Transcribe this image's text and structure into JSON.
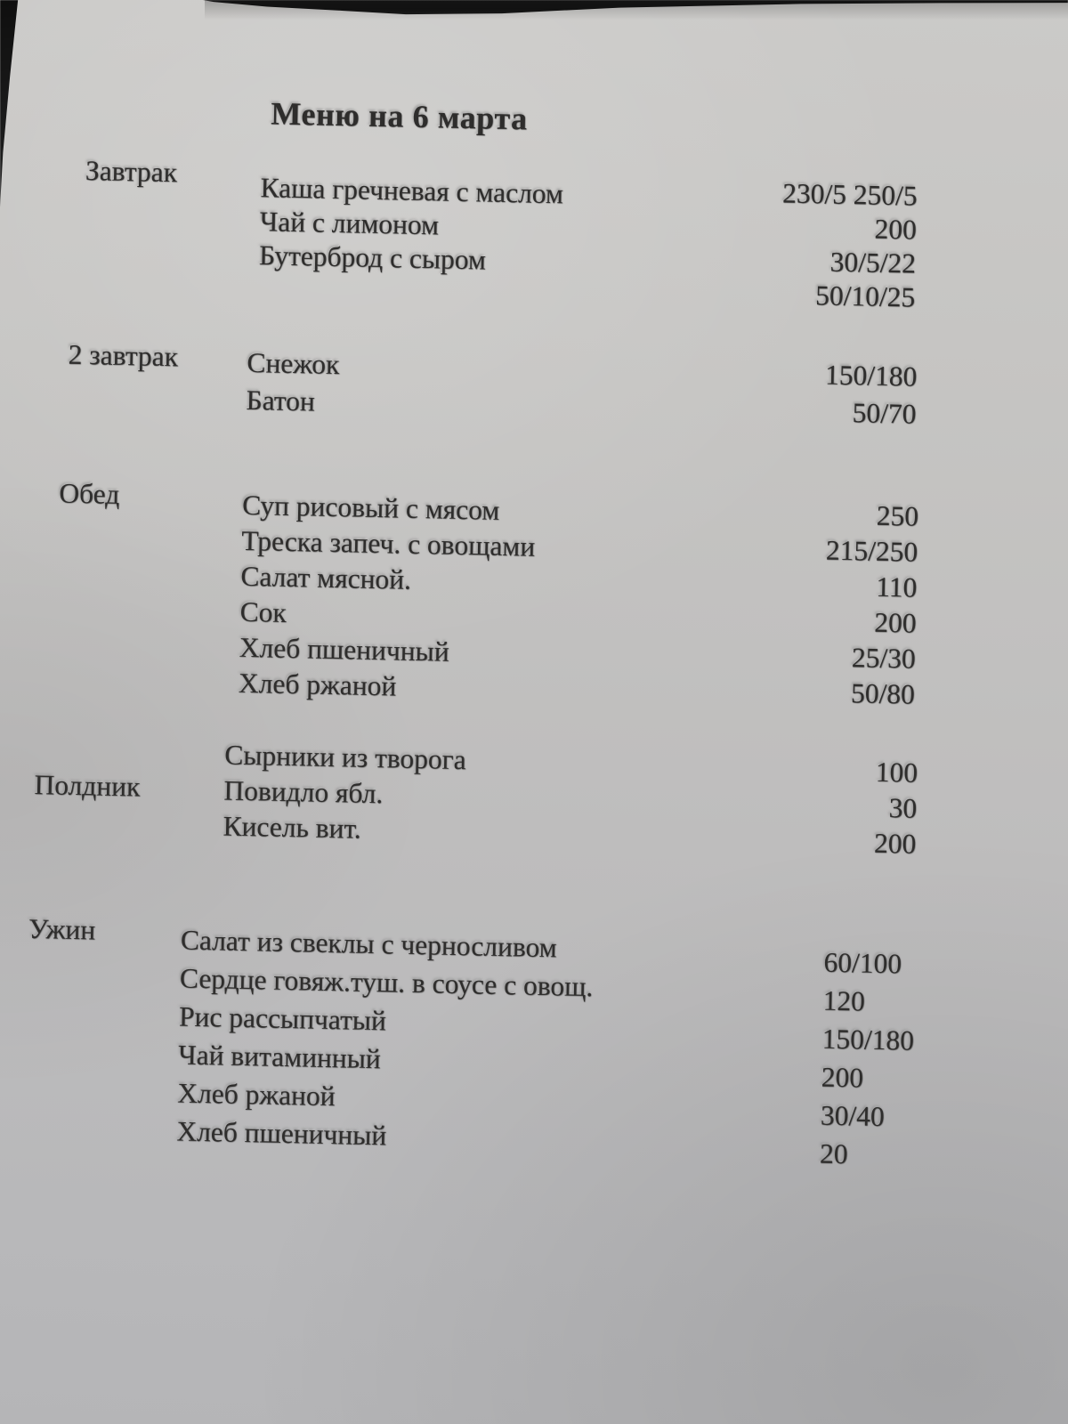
{
  "menu": {
    "title": "Меню на 6 марта",
    "sections": [
      {
        "label": "Завтрак",
        "rows": [
          {
            "item": "Каша гречневая с маслом",
            "amount": "230/5 250/5"
          },
          {
            "item": "Чай с лимоном",
            "amount": "200"
          },
          {
            "item": "Бутерброд с сыром",
            "amount": "30/5/22"
          },
          {
            "item": "",
            "amount": "50/10/25"
          }
        ]
      },
      {
        "label": "2 завтрак",
        "rows": [
          {
            "item": "Снежок",
            "amount": "150/180"
          },
          {
            "item": "Батон",
            "amount": "50/70"
          }
        ]
      },
      {
        "label": "Обед",
        "rows": [
          {
            "item": "Суп рисовый с мясом",
            "amount": "250"
          },
          {
            "item": "Треска запеч. с овощами",
            "amount": "215/250"
          },
          {
            "item": "Салат мясной.",
            "amount": "110"
          },
          {
            "item": "Сок",
            "amount": "200"
          },
          {
            "item": "Хлеб пшеничный",
            "amount": "25/30"
          },
          {
            "item": "Хлеб ржаной",
            "amount": "50/80"
          }
        ]
      },
      {
        "label": "Полдник",
        "rows": [
          {
            "item": "Сырники из творога",
            "amount": "100"
          },
          {
            "item": "Повидло ябл.",
            "amount": "30"
          },
          {
            "item": "Кисель вит.",
            "amount": "200"
          }
        ]
      },
      {
        "label": "Ужин",
        "rows": [
          {
            "item": "Салат из свеклы с черносливом",
            "amount": "60/100"
          },
          {
            "item": "Сердце говяж.туш. в соусе с овощ.",
            "amount": "120"
          },
          {
            "item": "Рис рассыпчатый",
            "amount": "150/180"
          },
          {
            "item": "Чай витаминный",
            "amount": "200"
          },
          {
            "item": "Хлеб ржаной",
            "amount": "30/40"
          },
          {
            "item": "Хлеб пшеничный",
            "amount": "20"
          }
        ]
      }
    ]
  },
  "colors": {
    "paper": "#c3c2c0",
    "ink": "#2e2d2c",
    "background_dark": "#161616"
  }
}
